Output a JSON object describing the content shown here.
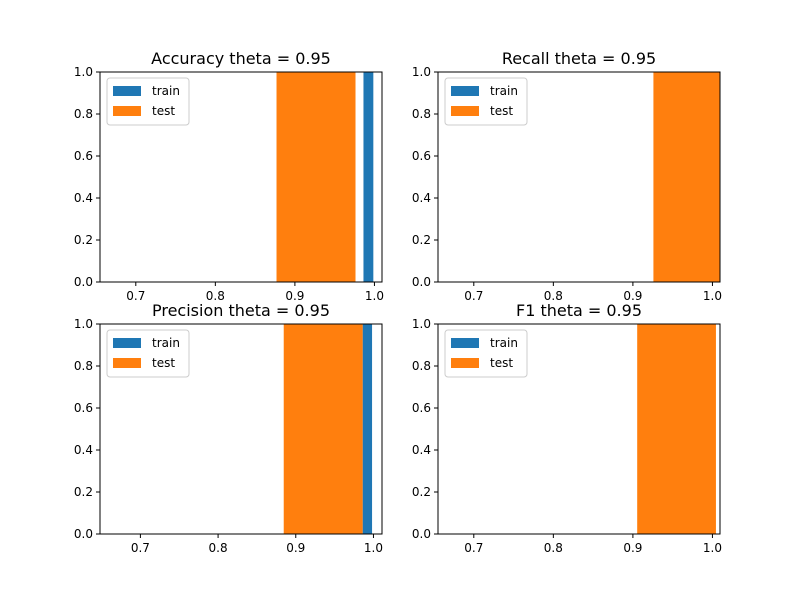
{
  "colors": {
    "train": "#1f77b4",
    "test": "#ff7f0e"
  },
  "chart_data": [
    {
      "type": "bar",
      "title": "Accuracy theta = 0.95",
      "xlim": [
        0.655,
        1.0095
      ],
      "ylim": [
        0,
        1
      ],
      "xticks": [
        "0.7",
        "0.8",
        "0.9",
        "1.0"
      ],
      "yticks": [
        "0.0",
        "0.2",
        "0.4",
        "0.6",
        "0.8",
        "1.0"
      ],
      "legend": {
        "placement": "top-left",
        "entries": [
          "train",
          "test"
        ]
      },
      "series": [
        {
          "name": "train",
          "bars": [
            {
              "x0": 0.9862,
              "x1": 0.9986,
              "value": 1.0
            }
          ]
        },
        {
          "name": "test",
          "bars": [
            {
              "x0": 0.8769,
              "x1": 0.9762,
              "value": 1.0
            }
          ]
        }
      ]
    },
    {
      "type": "bar",
      "title": "Recall theta = 0.95",
      "xlim": [
        0.655,
        1.0095
      ],
      "ylim": [
        0,
        1
      ],
      "xticks": [
        "0.7",
        "0.8",
        "0.9",
        "1.0"
      ],
      "yticks": [
        "0.0",
        "0.2",
        "0.4",
        "0.6",
        "0.8",
        "1.0"
      ],
      "legend": {
        "placement": "top-left",
        "entries": [
          "train",
          "test"
        ]
      },
      "series": [
        {
          "name": "train",
          "bars": []
        },
        {
          "name": "test",
          "bars": [
            {
              "x0": 0.9258,
              "x1": 1.0095,
              "value": 1.0
            }
          ]
        }
      ]
    },
    {
      "type": "bar",
      "title": "Precision theta = 0.95",
      "xlim": [
        0.648,
        1.011
      ],
      "ylim": [
        0,
        1
      ],
      "xticks": [
        "0.7",
        "0.8",
        "0.9",
        "1.0"
      ],
      "yticks": [
        "0.0",
        "0.2",
        "0.4",
        "0.6",
        "0.8",
        "1.0"
      ],
      "legend": {
        "placement": "top-left",
        "entries": [
          "train",
          "test"
        ]
      },
      "series": [
        {
          "name": "train",
          "bars": [
            {
              "x0": 0.9861,
              "x1": 0.9982,
              "value": 1.0
            }
          ]
        },
        {
          "name": "test",
          "bars": [
            {
              "x0": 0.8845,
              "x1": 0.9861,
              "value": 1.0
            }
          ]
        }
      ]
    },
    {
      "type": "bar",
      "title": "F1 theta = 0.95",
      "xlim": [
        0.655,
        1.0095
      ],
      "ylim": [
        0,
        1
      ],
      "xticks": [
        "0.7",
        "0.8",
        "0.9",
        "1.0"
      ],
      "yticks": [
        "0.0",
        "0.2",
        "0.4",
        "0.6",
        "0.8",
        "1.0"
      ],
      "legend": {
        "placement": "top-left",
        "entries": [
          "train",
          "test"
        ]
      },
      "series": [
        {
          "name": "train",
          "bars": []
        },
        {
          "name": "test",
          "bars": [
            {
              "x0": 0.9054,
              "x1": 1.0044,
              "value": 1.0
            }
          ]
        }
      ]
    }
  ]
}
